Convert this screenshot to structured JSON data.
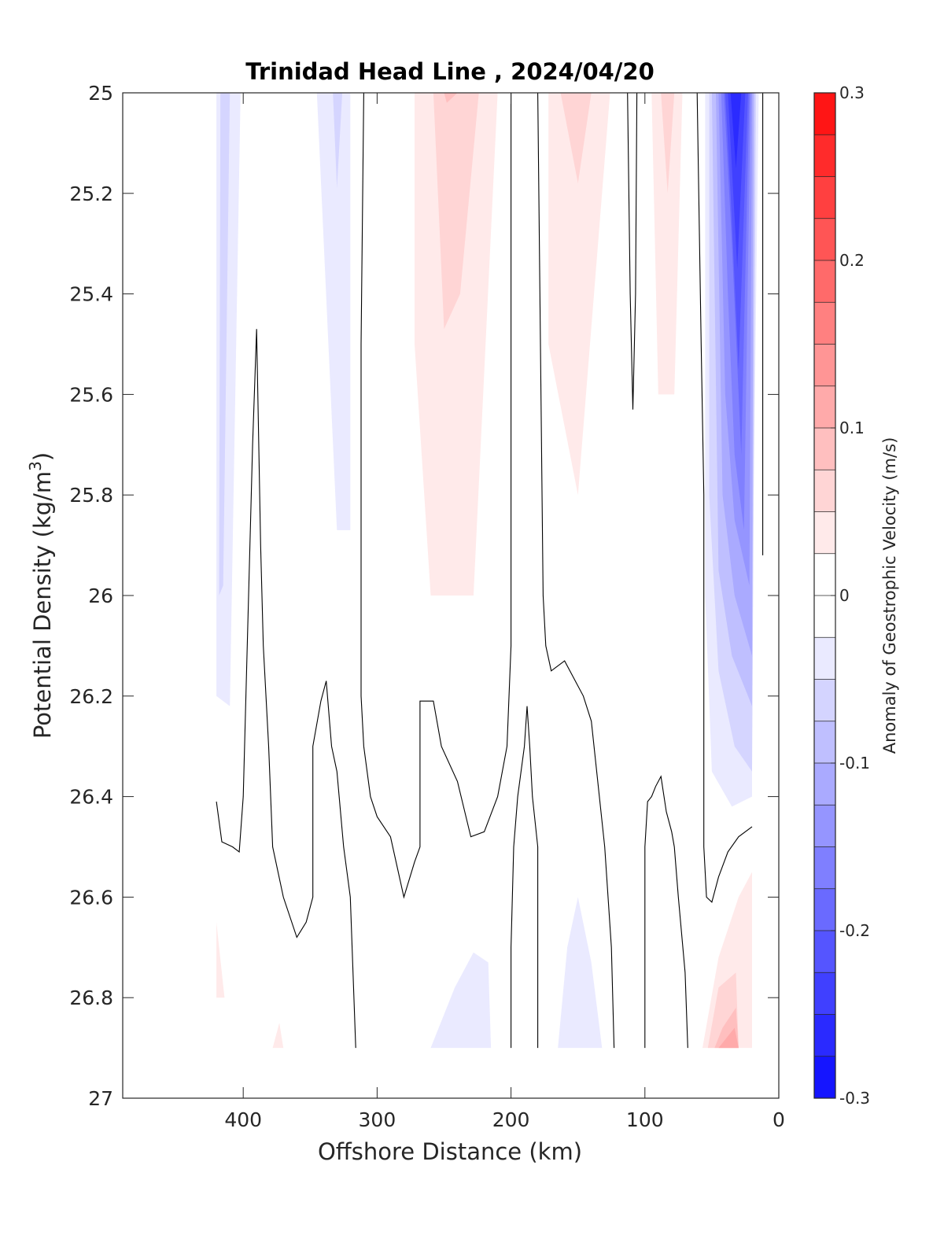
{
  "chart_data": {
    "type": "heatmap",
    "title": "Trinidad Head Line , 2024/04/20",
    "xlabel": "Offshore Distance (km)",
    "ylabel": "Potential Density (kg/m",
    "ylabel_sup": "3",
    "ylabel_end": ")",
    "colorbar_label": "Anomaly of Geostrophic Velocity (m/s)",
    "xlim": [
      490,
      0
    ],
    "x_reversed": true,
    "ylim": [
      25,
      27
    ],
    "y_reversed": true,
    "xticks": [
      400,
      300,
      200,
      100,
      0
    ],
    "yticks": [
      25,
      25.2,
      25.4,
      25.6,
      25.8,
      26,
      26.2,
      26.4,
      26.6,
      26.8,
      27
    ],
    "ytick_labels": [
      "25",
      "25.2",
      "25.4",
      "25.6",
      "25.8",
      "26",
      "26.2",
      "26.4",
      "26.6",
      "26.8",
      "27"
    ],
    "clim": [
      -0.3,
      0.3
    ],
    "colorbar_ticks": [
      0.3,
      0.2,
      0.1,
      0,
      -0.1,
      -0.2,
      -0.3
    ],
    "colorbar_tick_labels": [
      "0.3",
      "0.2",
      "0.1",
      "0",
      "-0.1",
      "-0.2",
      "-0.3"
    ],
    "colorbar_step": 0.025,
    "colors": {
      "negative": "#0000ff",
      "positive": "#ff0000",
      "zero": "#ffffff",
      "contour": "#000000"
    },
    "filled_regions": [
      {
        "value": -0.025,
        "points": [
          [
            420,
            25
          ],
          [
            402,
            25
          ],
          [
            410,
            26.22
          ],
          [
            420,
            26.2
          ]
        ]
      },
      {
        "value": -0.05,
        "points": [
          [
            417,
            25
          ],
          [
            410,
            25
          ],
          [
            415,
            25.98
          ],
          [
            418,
            26.0
          ]
        ]
      },
      {
        "value": -0.025,
        "points": [
          [
            345,
            25
          ],
          [
            320,
            25
          ],
          [
            320,
            25.87
          ],
          [
            330,
            25.87
          ]
        ]
      },
      {
        "value": -0.05,
        "points": [
          [
            333,
            25
          ],
          [
            326,
            25
          ],
          [
            330,
            25.19
          ]
        ]
      },
      {
        "value": 0.025,
        "points": [
          [
            272,
            25
          ],
          [
            210,
            25
          ],
          [
            228,
            26.0
          ],
          [
            260,
            26.0
          ],
          [
            272,
            25.5
          ]
        ]
      },
      {
        "value": 0.05,
        "points": [
          [
            258,
            25
          ],
          [
            224,
            25
          ],
          [
            238,
            25.4
          ],
          [
            250,
            25.47
          ]
        ]
      },
      {
        "value": 0.075,
        "points": [
          [
            250,
            25
          ],
          [
            240,
            25
          ],
          [
            248,
            25.02
          ]
        ]
      },
      {
        "value": 0.025,
        "points": [
          [
            172,
            25
          ],
          [
            126,
            25
          ],
          [
            150,
            25.8
          ],
          [
            172,
            25.5
          ]
        ]
      },
      {
        "value": 0.05,
        "points": [
          [
            163,
            25
          ],
          [
            140,
            25
          ],
          [
            150,
            25.18
          ]
        ]
      },
      {
        "value": 0.025,
        "points": [
          [
            95,
            25
          ],
          [
            72,
            25
          ],
          [
            78,
            25.6
          ],
          [
            90,
            25.6
          ]
        ]
      },
      {
        "value": 0.05,
        "points": [
          [
            88,
            25
          ],
          [
            78,
            25
          ],
          [
            83,
            25.2
          ]
        ]
      },
      {
        "value": -0.025,
        "points": [
          [
            55,
            25
          ],
          [
            15,
            25
          ],
          [
            20,
            26.05
          ],
          [
            20,
            26.4
          ],
          [
            35,
            26.42
          ],
          [
            50,
            26.35
          ],
          [
            55,
            26.0
          ]
        ]
      },
      {
        "value": -0.05,
        "points": [
          [
            52,
            25
          ],
          [
            17,
            25
          ],
          [
            20,
            26.35
          ],
          [
            33,
            26.3
          ],
          [
            45,
            26.15
          ],
          [
            52,
            25.8
          ]
        ]
      },
      {
        "value": -0.075,
        "points": [
          [
            50,
            25
          ],
          [
            18,
            25
          ],
          [
            20,
            26.22
          ],
          [
            35,
            26.12
          ],
          [
            45,
            25.95
          ]
        ]
      },
      {
        "value": -0.1,
        "points": [
          [
            47,
            25
          ],
          [
            19,
            25
          ],
          [
            20,
            26.12
          ],
          [
            33,
            26.0
          ],
          [
            42,
            25.8
          ]
        ]
      },
      {
        "value": -0.125,
        "points": [
          [
            45,
            25
          ],
          [
            20,
            25
          ],
          [
            22,
            25.98
          ],
          [
            33,
            25.85
          ],
          [
            40,
            25.6
          ]
        ]
      },
      {
        "value": -0.15,
        "points": [
          [
            43,
            25
          ],
          [
            21,
            25
          ],
          [
            26,
            25.87
          ],
          [
            33,
            25.72
          ],
          [
            38,
            25.4
          ]
        ]
      },
      {
        "value": -0.175,
        "points": [
          [
            41,
            25
          ],
          [
            22,
            25
          ],
          [
            28,
            25.72
          ],
          [
            35,
            25.3
          ]
        ]
      },
      {
        "value": -0.2,
        "points": [
          [
            40,
            25
          ],
          [
            23,
            25
          ],
          [
            30,
            25.55
          ],
          [
            36,
            25.2
          ]
        ]
      },
      {
        "value": -0.225,
        "points": [
          [
            38,
            25
          ],
          [
            25,
            25
          ],
          [
            31,
            25.35
          ]
        ]
      },
      {
        "value": -0.25,
        "points": [
          [
            36,
            25
          ],
          [
            28,
            25
          ],
          [
            32,
            25.15
          ]
        ]
      },
      {
        "value": -0.025,
        "points": [
          [
            260,
            26.9
          ],
          [
            215,
            26.9
          ],
          [
            217,
            26.73
          ],
          [
            228,
            26.71
          ],
          [
            242,
            26.78
          ]
        ]
      },
      {
        "value": -0.025,
        "points": [
          [
            165,
            26.9
          ],
          [
            132,
            26.9
          ],
          [
            140,
            26.73
          ],
          [
            150,
            26.6
          ],
          [
            158,
            26.7
          ]
        ]
      },
      {
        "value": 0.025,
        "points": [
          [
            57,
            26.9
          ],
          [
            20,
            26.9
          ],
          [
            20,
            26.55
          ],
          [
            30,
            26.6
          ],
          [
            45,
            26.72
          ]
        ]
      },
      {
        "value": 0.05,
        "points": [
          [
            53,
            26.9
          ],
          [
            30,
            26.9
          ],
          [
            32,
            26.75
          ],
          [
            45,
            26.78
          ]
        ]
      },
      {
        "value": 0.075,
        "points": [
          [
            48,
            26.9
          ],
          [
            30,
            26.9
          ],
          [
            32,
            26.82
          ],
          [
            42,
            26.86
          ]
        ]
      },
      {
        "value": 0.1,
        "points": [
          [
            45,
            26.9
          ],
          [
            30,
            26.9
          ],
          [
            33,
            26.86
          ]
        ]
      },
      {
        "value": 0.025,
        "points": [
          [
            420,
            26.65
          ],
          [
            414,
            26.8
          ],
          [
            420,
            26.8
          ]
        ]
      },
      {
        "value": 0.025,
        "points": [
          [
            378,
            26.9
          ],
          [
            370,
            26.9
          ],
          [
            373,
            26.85
          ]
        ]
      }
    ],
    "zero_contours": [
      [
        [
          420,
          26.41
        ],
        [
          416,
          26.49
        ],
        [
          408,
          26.5
        ],
        [
          403,
          26.51
        ],
        [
          400,
          26.4
        ],
        [
          396,
          26.0
        ],
        [
          393,
          25.7
        ],
        [
          390,
          25.47
        ],
        [
          387,
          25.9
        ],
        [
          385,
          26.1
        ],
        [
          381,
          26.3
        ],
        [
          378,
          26.5
        ],
        [
          370,
          26.6
        ],
        [
          360,
          26.68
        ],
        [
          353,
          26.65
        ],
        [
          348,
          26.6
        ],
        [
          348,
          26.3
        ],
        [
          342,
          26.21
        ],
        [
          338,
          26.17
        ],
        [
          334,
          26.3
        ],
        [
          330,
          26.35
        ],
        [
          325,
          26.5
        ],
        [
          320,
          26.6
        ],
        [
          316,
          26.9
        ]
      ],
      [
        [
          310,
          25
        ],
        [
          312,
          25.5
        ],
        [
          312,
          26.0
        ],
        [
          312,
          26.2
        ],
        [
          310,
          26.3
        ],
        [
          305,
          26.4
        ],
        [
          300,
          26.44
        ],
        [
          290,
          26.48
        ],
        [
          280,
          26.6
        ],
        [
          272,
          26.53
        ],
        [
          268,
          26.5
        ],
        [
          268,
          26.3
        ],
        [
          268,
          26.21
        ],
        [
          258,
          26.21
        ],
        [
          252,
          26.3
        ],
        [
          240,
          26.37
        ],
        [
          230,
          26.48
        ],
        [
          220,
          26.47
        ],
        [
          210,
          26.4
        ],
        [
          203,
          26.3
        ],
        [
          200,
          26.1
        ],
        [
          200,
          25.5
        ],
        [
          200,
          25
        ]
      ],
      [
        [
          180,
          25
        ],
        [
          178,
          25.5
        ],
        [
          176,
          26.0
        ],
        [
          174,
          26.1
        ],
        [
          170,
          26.15
        ],
        [
          160,
          26.13
        ],
        [
          152,
          26.17
        ],
        [
          146,
          26.2
        ],
        [
          140,
          26.25
        ],
        [
          138,
          26.3
        ],
        [
          134,
          26.4
        ],
        [
          130,
          26.5
        ],
        [
          125,
          26.7
        ],
        [
          123,
          26.9
        ]
      ],
      [
        [
          200,
          26.9
        ],
        [
          200,
          26.7
        ],
        [
          198,
          26.5
        ],
        [
          195,
          26.4
        ],
        [
          190,
          26.3
        ],
        [
          188,
          26.22
        ],
        [
          186,
          26.3
        ],
        [
          184,
          26.4
        ],
        [
          180,
          26.5
        ],
        [
          180,
          26.9
        ]
      ],
      [
        [
          113,
          25
        ],
        [
          111,
          25.4
        ],
        [
          109,
          25.63
        ],
        [
          107,
          25.4
        ],
        [
          106,
          25
        ]
      ],
      [
        [
          100,
          26.9
        ],
        [
          100,
          26.7
        ],
        [
          100,
          26.5
        ],
        [
          98,
          26.41
        ],
        [
          95,
          26.4
        ],
        [
          92,
          26.38
        ],
        [
          88,
          26.36
        ],
        [
          84,
          26.43
        ],
        [
          80,
          26.47
        ],
        [
          78,
          26.5
        ],
        [
          75,
          26.6
        ],
        [
          70,
          26.75
        ],
        [
          68,
          26.9
        ]
      ],
      [
        [
          61,
          25
        ],
        [
          58,
          25.5
        ],
        [
          56,
          25.8
        ],
        [
          56,
          26.2
        ],
        [
          56,
          26.5
        ],
        [
          54,
          26.6
        ],
        [
          50,
          26.61
        ],
        [
          45,
          26.56
        ],
        [
          38,
          26.51
        ],
        [
          30,
          26.48
        ],
        [
          20,
          26.46
        ]
      ],
      [
        [
          12,
          25
        ],
        [
          12,
          25.5
        ],
        [
          12,
          25.92
        ]
      ]
    ]
  }
}
